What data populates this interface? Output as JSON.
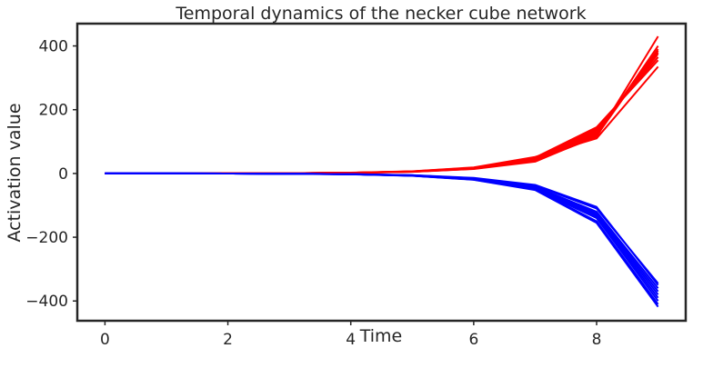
{
  "chart_data": {
    "type": "line",
    "title": "Temporal dynamics of the necker cube network",
    "xlabel": "Time",
    "ylabel": "Activation value",
    "xlim": [
      -0.45,
      9.45
    ],
    "ylim": [
      -462,
      470
    ],
    "xticks": [
      0,
      2,
      4,
      6,
      8
    ],
    "yticks": [
      -400,
      -200,
      0,
      200,
      400
    ],
    "x": [
      0,
      1,
      2,
      3,
      4,
      5,
      6,
      7,
      8,
      9
    ],
    "grid": false,
    "legend": "none",
    "colors": {
      "group_a": "#ff0000",
      "group_b": "#0000ff",
      "axes": "#262626"
    },
    "series": [
      {
        "group": "a",
        "values": [
          0,
          0.1,
          0.3,
          0.8,
          2.1,
          5.6,
          15,
          40,
          115,
          430
        ]
      },
      {
        "group": "a",
        "values": [
          0,
          0.1,
          0.3,
          0.8,
          2.0,
          5.4,
          14.5,
          39,
          120,
          400
        ]
      },
      {
        "group": "a",
        "values": [
          0,
          0.1,
          0.3,
          0.8,
          2.0,
          5.2,
          14,
          37,
          118,
          390
        ]
      },
      {
        "group": "a",
        "values": [
          0,
          0.1,
          0.3,
          0.8,
          2.0,
          5.5,
          15,
          40,
          125,
          385
        ]
      },
      {
        "group": "a",
        "values": [
          0,
          0.1,
          0.3,
          0.9,
          2.2,
          6.0,
          16,
          44,
          130,
          380
        ]
      },
      {
        "group": "a",
        "values": [
          0,
          0.1,
          0.3,
          0.9,
          2.3,
          6.2,
          17,
          46,
          135,
          375
        ]
      },
      {
        "group": "a",
        "values": [
          0,
          0.1,
          0.3,
          0.9,
          2.4,
          6.5,
          18,
          48,
          140,
          365
        ]
      },
      {
        "group": "a",
        "values": [
          0,
          0.1,
          0.3,
          0.9,
          2.3,
          6.3,
          17,
          50,
          145,
          355
        ]
      },
      {
        "group": "a",
        "values": [
          0,
          0.1,
          0.3,
          1.0,
          2.5,
          6.8,
          19,
          52,
          110,
          335
        ]
      },
      {
        "group": "b",
        "values": [
          0,
          -0.1,
          -0.3,
          -0.8,
          -2.1,
          -5.6,
          -15,
          -38,
          -110,
          -345
        ]
      },
      {
        "group": "b",
        "values": [
          0,
          -0.1,
          -0.3,
          -0.8,
          -2.0,
          -5.4,
          -14,
          -36,
          -105,
          -350
        ]
      },
      {
        "group": "b",
        "values": [
          0,
          -0.1,
          -0.3,
          -0.8,
          -2.2,
          -5.8,
          -16,
          -42,
          -120,
          -360
        ]
      },
      {
        "group": "b",
        "values": [
          0,
          -0.1,
          -0.3,
          -0.9,
          -2.3,
          -6.2,
          -17,
          -44,
          -125,
          -370
        ]
      },
      {
        "group": "b",
        "values": [
          0,
          -0.1,
          -0.3,
          -0.9,
          -2.4,
          -6.5,
          -18,
          -47,
          -130,
          -380
        ]
      },
      {
        "group": "b",
        "values": [
          0,
          -0.1,
          -0.3,
          -0.9,
          -2.4,
          -6.6,
          -18,
          -48,
          -135,
          -390
        ]
      },
      {
        "group": "b",
        "values": [
          0,
          -0.1,
          -0.3,
          -1.0,
          -2.6,
          -7.0,
          -19,
          -50,
          -140,
          -400
        ]
      },
      {
        "group": "b",
        "values": [
          0,
          -0.1,
          -0.3,
          -1.0,
          -2.6,
          -7.1,
          -19,
          -51,
          -150,
          -410
        ]
      },
      {
        "group": "b",
        "values": [
          0,
          -0.1,
          -0.3,
          -1.0,
          -2.7,
          -7.3,
          -20,
          -52,
          -155,
          -418
        ]
      }
    ]
  }
}
